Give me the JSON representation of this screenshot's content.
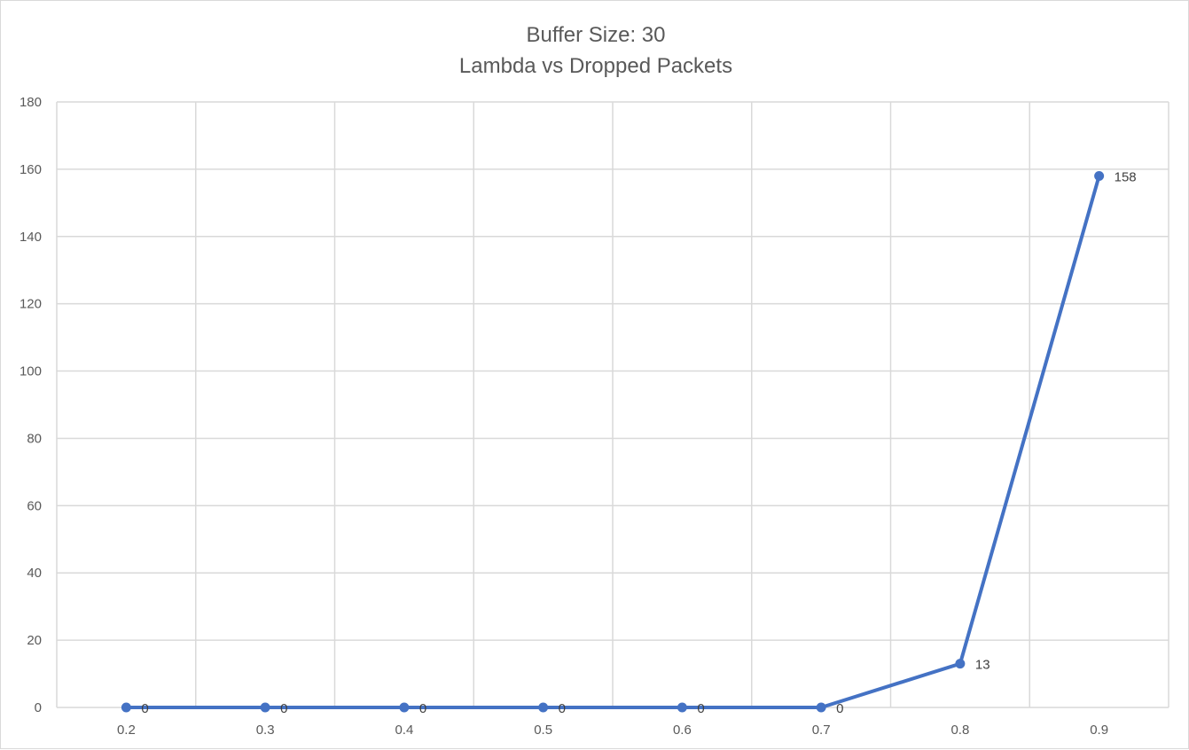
{
  "chart_data": {
    "type": "line",
    "title": [
      "Buffer Size: 30",
      "Lambda vs Dropped Packets"
    ],
    "xlabel": "",
    "ylabel": "",
    "categories": [
      "0.2",
      "0.3",
      "0.4",
      "0.5",
      "0.6",
      "0.7",
      "0.8",
      "0.9"
    ],
    "series": [
      {
        "values": [
          0,
          0,
          0,
          0,
          0,
          0,
          13,
          158
        ],
        "color": "#4472C4"
      }
    ],
    "data_labels": [
      "0",
      "0",
      "0",
      "0",
      "0",
      "0",
      "13",
      "158"
    ],
    "ylim": [
      0,
      180
    ],
    "yticks": [
      "0",
      "20",
      "40",
      "60",
      "80",
      "100",
      "120",
      "140",
      "160",
      "180"
    ],
    "grid": true,
    "legend": "none"
  }
}
